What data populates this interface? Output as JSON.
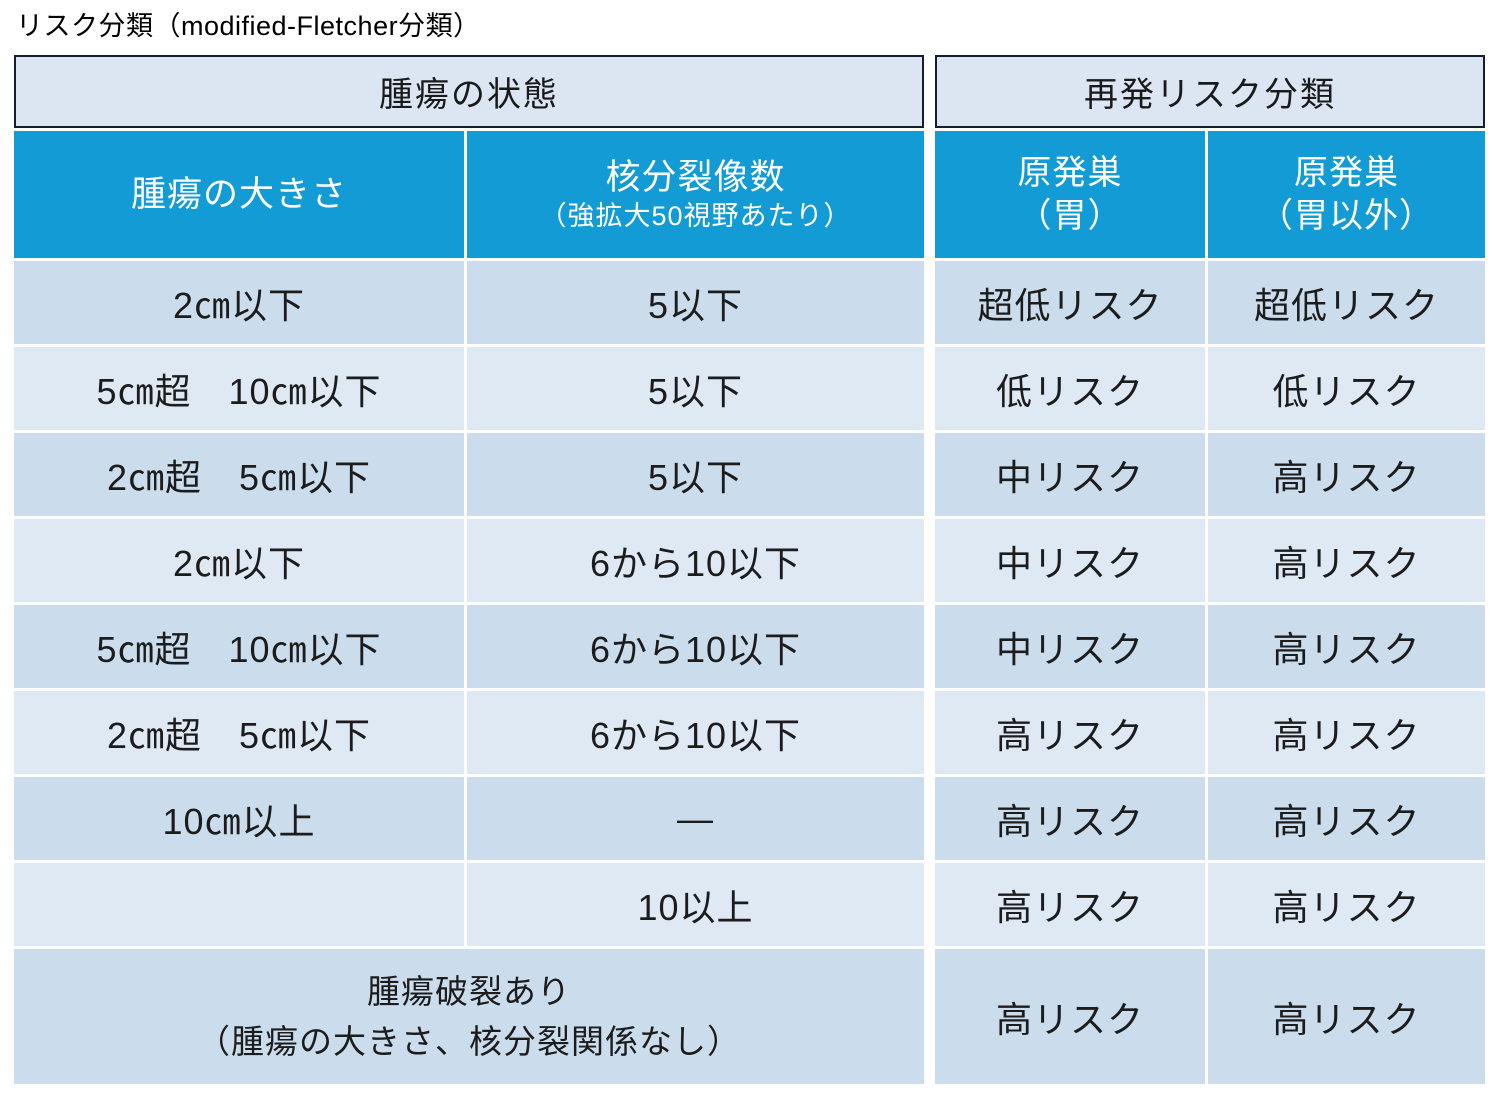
{
  "title": "リスク分類（modified-Fletcher分類）",
  "colors": {
    "header_blue": "#139bd5",
    "group_header_fill": "#dce6f3",
    "group_header_border": "#141e33",
    "row_odd": "#cbdcec",
    "row_even": "#dfe9f4",
    "grid_line": "#ffffff",
    "text_dark": "#1c1c1c",
    "text_white": "#ffffff"
  },
  "chart_data": {
    "type": "table",
    "title": "リスク分類（modified-Fletcher分類）",
    "group_headers": [
      {
        "label": "腫瘍の状態",
        "span": [
          "腫瘍の大きさ",
          "核分裂像数"
        ]
      },
      {
        "label": "再発リスク分類",
        "span": [
          "原発巣（胃）",
          "原発巣（胃以外）"
        ]
      }
    ],
    "column_headers": [
      {
        "line1": "腫瘍の大きさ",
        "line2": ""
      },
      {
        "line1": "核分裂像数",
        "line2": "（強拡大50視野あたり）"
      },
      {
        "line1": "原発巣",
        "line2": "（胃）"
      },
      {
        "line1": "原発巣",
        "line2": "（胃以外）"
      }
    ],
    "rows": [
      {
        "size": "2㎝以下",
        "mitotic": "5以下",
        "stomach": "超低リスク",
        "non_stomach": "超低リスク"
      },
      {
        "size": "5㎝超　10㎝以下",
        "mitotic": "5以下",
        "stomach": "低リスク",
        "non_stomach": "低リスク"
      },
      {
        "size": "2㎝超　5㎝以下",
        "mitotic": "5以下",
        "stomach": "中リスク",
        "non_stomach": "高リスク"
      },
      {
        "size": "2㎝以下",
        "mitotic": "6から10以下",
        "stomach": "中リスク",
        "non_stomach": "高リスク"
      },
      {
        "size": "5㎝超　10㎝以下",
        "mitotic": "6から10以下",
        "stomach": "中リスク",
        "non_stomach": "高リスク"
      },
      {
        "size": "2㎝超　5㎝以下",
        "mitotic": "6から10以下",
        "stomach": "高リスク",
        "non_stomach": "高リスク"
      },
      {
        "size": "10㎝以上",
        "mitotic": "―",
        "stomach": "高リスク",
        "non_stomach": "高リスク"
      },
      {
        "size": "",
        "mitotic": "10以上",
        "stomach": "高リスク",
        "non_stomach": "高リスク"
      },
      {
        "size_line1": "腫瘍破裂あり",
        "size_line2": "（腫瘍の大きさ、核分裂関係なし）",
        "stomach": "高リスク",
        "non_stomach": "高リスク"
      }
    ]
  }
}
